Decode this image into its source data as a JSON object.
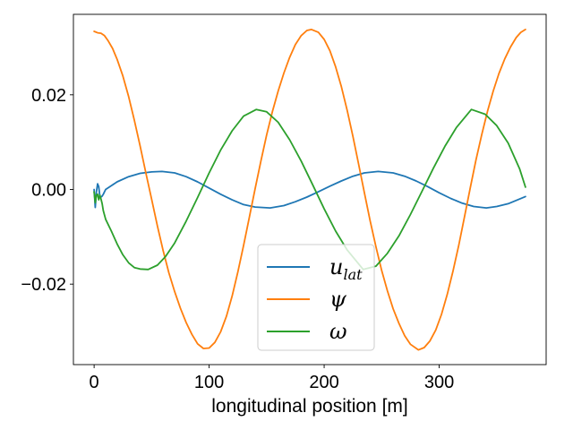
{
  "chart_data": {
    "type": "line",
    "title": "",
    "xlabel": "longitudinal position [m]",
    "ylabel": "",
    "xlim": [
      -18,
      393
    ],
    "ylim": [
      -0.037,
      0.037
    ],
    "xticks": [
      0,
      100,
      200,
      300
    ],
    "xtick_labels": [
      "0",
      "100",
      "200",
      "300"
    ],
    "yticks": [
      -0.02,
      0.0,
      0.02
    ],
    "ytick_labels": [
      "−0.02",
      "0.00",
      "0.02"
    ],
    "grid": false,
    "legend_position": "lower-center",
    "series": [
      {
        "name": "u",
        "subscript": "lat",
        "color": "#1f77b4",
        "x": [
          0,
          1,
          2,
          3,
          4,
          5,
          6,
          7,
          8,
          9,
          10,
          15,
          20,
          30,
          40,
          50,
          59,
          70,
          80,
          90,
          100,
          110,
          120,
          130,
          140,
          153,
          165,
          175,
          185,
          195,
          205,
          215,
          225,
          235,
          247,
          260,
          270,
          280,
          290,
          300,
          310,
          320,
          330,
          341,
          350,
          360,
          375
        ],
        "y": [
          0.0,
          -0.0038,
          -0.0005,
          0.0012,
          0.0006,
          -0.0014,
          -0.0016,
          -0.0014,
          -0.001,
          -0.0005,
          0.0,
          0.0008,
          0.0016,
          0.0027,
          0.0034,
          0.0037,
          0.0038,
          0.0035,
          0.0027,
          0.0016,
          0.0003,
          -0.001,
          -0.0022,
          -0.0032,
          -0.0037,
          -0.0039,
          -0.0034,
          -0.0026,
          -0.0016,
          -0.0005,
          0.0007,
          0.0018,
          0.0028,
          0.0035,
          0.0038,
          0.0035,
          0.0028,
          0.0018,
          0.0006,
          -0.0007,
          -0.0019,
          -0.0029,
          -0.0036,
          -0.0039,
          -0.0036,
          -0.003,
          -0.0015
        ]
      },
      {
        "name": "ψ",
        "subscript": "",
        "color": "#ff7f0e",
        "x": [
          0,
          3,
          6,
          9,
          12,
          16,
          20,
          25,
          30,
          35,
          40,
          45,
          50,
          55,
          60,
          65,
          70,
          75,
          80,
          85,
          90,
          95,
          100,
          105,
          110,
          115,
          120,
          125,
          130,
          135,
          140,
          145,
          150,
          155,
          160,
          165,
          170,
          175,
          180,
          185,
          189,
          195,
          200,
          205,
          210,
          215,
          220,
          225,
          230,
          235,
          240,
          245,
          250,
          255,
          260,
          265,
          270,
          275,
          282,
          287,
          292,
          297,
          302,
          307,
          312,
          317,
          322,
          327,
          332,
          337,
          342,
          347,
          352,
          357,
          362,
          367,
          371,
          375
        ],
        "y": [
          0.0334,
          0.0331,
          0.033,
          0.0325,
          0.0315,
          0.0298,
          0.0275,
          0.024,
          0.0196,
          0.0146,
          0.0092,
          0.0035,
          -0.0021,
          -0.0077,
          -0.0129,
          -0.0176,
          -0.0216,
          -0.0251,
          -0.0281,
          -0.0306,
          -0.0326,
          -0.0336,
          -0.0335,
          -0.0323,
          -0.0301,
          -0.0268,
          -0.0225,
          -0.0174,
          -0.0118,
          -0.0058,
          0.0002,
          0.006,
          0.0115,
          0.0164,
          0.0208,
          0.0246,
          0.0279,
          0.0306,
          0.0325,
          0.0336,
          0.0338,
          0.0332,
          0.0317,
          0.0293,
          0.0259,
          0.0217,
          0.0167,
          0.0112,
          0.0053,
          -0.0007,
          -0.0066,
          -0.0121,
          -0.0171,
          -0.0214,
          -0.0252,
          -0.0283,
          -0.0309,
          -0.0327,
          -0.0339,
          -0.0334,
          -0.032,
          -0.0297,
          -0.0264,
          -0.0222,
          -0.0173,
          -0.0118,
          -0.0058,
          0.0003,
          0.0062,
          0.0116,
          0.0165,
          0.0208,
          0.0245,
          0.0276,
          0.0301,
          0.0321,
          0.0332,
          0.0338
        ]
      },
      {
        "name": "ω",
        "subscript": "",
        "color": "#2ca02c",
        "x": [
          0,
          1,
          2,
          3,
          4,
          5,
          6,
          7,
          8,
          10,
          15,
          20,
          25,
          30,
          35,
          40,
          47,
          55,
          62,
          70,
          80,
          90,
          100,
          110,
          120,
          130,
          141,
          150,
          160,
          170,
          180,
          190,
          200,
          210,
          220,
          234,
          245,
          255,
          265,
          275,
          285,
          295,
          305,
          315,
          328,
          340,
          350,
          360,
          370,
          375
        ],
        "y": [
          -0.0005,
          -0.0028,
          -0.0012,
          -0.001,
          -0.0022,
          -0.0012,
          -0.002,
          -0.003,
          -0.0045,
          -0.0063,
          -0.0088,
          -0.0115,
          -0.0138,
          -0.0155,
          -0.0165,
          -0.0168,
          -0.0169,
          -0.016,
          -0.0142,
          -0.0113,
          -0.0067,
          -0.0017,
          0.0035,
          0.0083,
          0.0124,
          0.0155,
          0.0169,
          0.0164,
          0.0142,
          0.0105,
          0.006,
          0.001,
          -0.0041,
          -0.0088,
          -0.0128,
          -0.0169,
          -0.0162,
          -0.0135,
          -0.0098,
          -0.0053,
          -0.0004,
          0.0045,
          0.0091,
          0.0131,
          0.0169,
          0.0159,
          0.0135,
          0.0098,
          0.0043,
          0.0005
        ]
      }
    ]
  }
}
